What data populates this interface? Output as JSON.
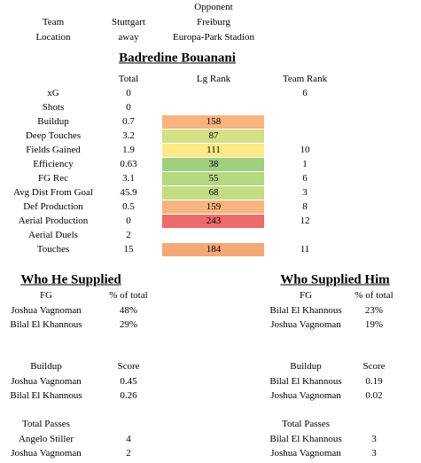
{
  "match": {
    "opponent_header": "Opponent",
    "rows": [
      {
        "label": "Team",
        "team": "Stuttgart",
        "opponent": "Freiburg"
      },
      {
        "label": "Location",
        "team": "away",
        "opponent": "Europa-Park Stadion"
      }
    ]
  },
  "player": {
    "name": "Badredine Bouanani",
    "columns": [
      "Total",
      "Lg Rank",
      "Team Rank"
    ],
    "rows": [
      {
        "label": "xG",
        "total": "0",
        "team_rank": "6"
      },
      {
        "label": "Shots",
        "total": "0"
      },
      {
        "label": "Buildup",
        "total": "0.7",
        "lg_rank": "158",
        "color": "#f6b57f"
      },
      {
        "label": "Deep Touches",
        "total": "3.2",
        "lg_rank": "87",
        "color": "#d3e083"
      },
      {
        "label": "Fields Gained",
        "total": "1.9",
        "lg_rank": "111",
        "color": "#fde985",
        "team_rank": "10"
      },
      {
        "label": "Efficiency",
        "total": "0.63",
        "lg_rank": "38",
        "color": "#9dcf7f",
        "team_rank": "1"
      },
      {
        "label": "FG Rec",
        "total": "3.1",
        "lg_rank": "55",
        "color": "#b5d881",
        "team_rank": "6"
      },
      {
        "label": "Avg Dist From Goal",
        "total": "45.9",
        "lg_rank": "68",
        "color": "#c4dc84",
        "team_rank": "3"
      },
      {
        "label": "Def Production",
        "total": "0.5",
        "lg_rank": "159",
        "color": "#f6b57f",
        "team_rank": "8"
      },
      {
        "label": "Aerial Production",
        "total": "0",
        "lg_rank": "243",
        "color": "#ec6b6b",
        "team_rank": "12"
      },
      {
        "label": "Aerial Duels",
        "total": "2"
      },
      {
        "label": "Touches",
        "total": "15",
        "lg_rank": "184",
        "color": "#f4a878",
        "team_rank": "11"
      }
    ]
  },
  "supplied": {
    "title": "Who He Supplied",
    "tables": [
      {
        "headers": [
          "FG",
          "% of total"
        ],
        "rows": [
          [
            "Joshua Vagnoman",
            "48%"
          ],
          [
            "Bilal El Khannous",
            "29%"
          ]
        ]
      },
      {
        "headers": [
          "Buildup",
          "Score"
        ],
        "rows": [
          [
            "Joshua Vagnoman",
            "0.45"
          ],
          [
            "Bilal El Khannous",
            "0.26"
          ]
        ]
      },
      {
        "headers": [
          "Total Passes"
        ],
        "rows": [
          [
            "Angelo Stiller",
            "4"
          ],
          [
            "Joshua Vagnoman",
            "2"
          ]
        ]
      }
    ]
  },
  "supplied_by": {
    "title": "Who Supplied Him",
    "tables": [
      {
        "headers": [
          "FG",
          "% of total"
        ],
        "rows": [
          [
            "Bilal El Khannous",
            "23%"
          ],
          [
            "Joshua Vagnoman",
            "19%"
          ]
        ]
      },
      {
        "headers": [
          "Buildup",
          "Score"
        ],
        "rows": [
          [
            "Bilal El Khannous",
            "0.19"
          ],
          [
            "Joshua Vagnoman",
            "0.02"
          ]
        ]
      },
      {
        "headers": [
          "Total Passes"
        ],
        "rows": [
          [
            "Bilal El Khannous",
            "3"
          ],
          [
            "Joshua Vagnoman",
            "3"
          ]
        ]
      }
    ]
  }
}
